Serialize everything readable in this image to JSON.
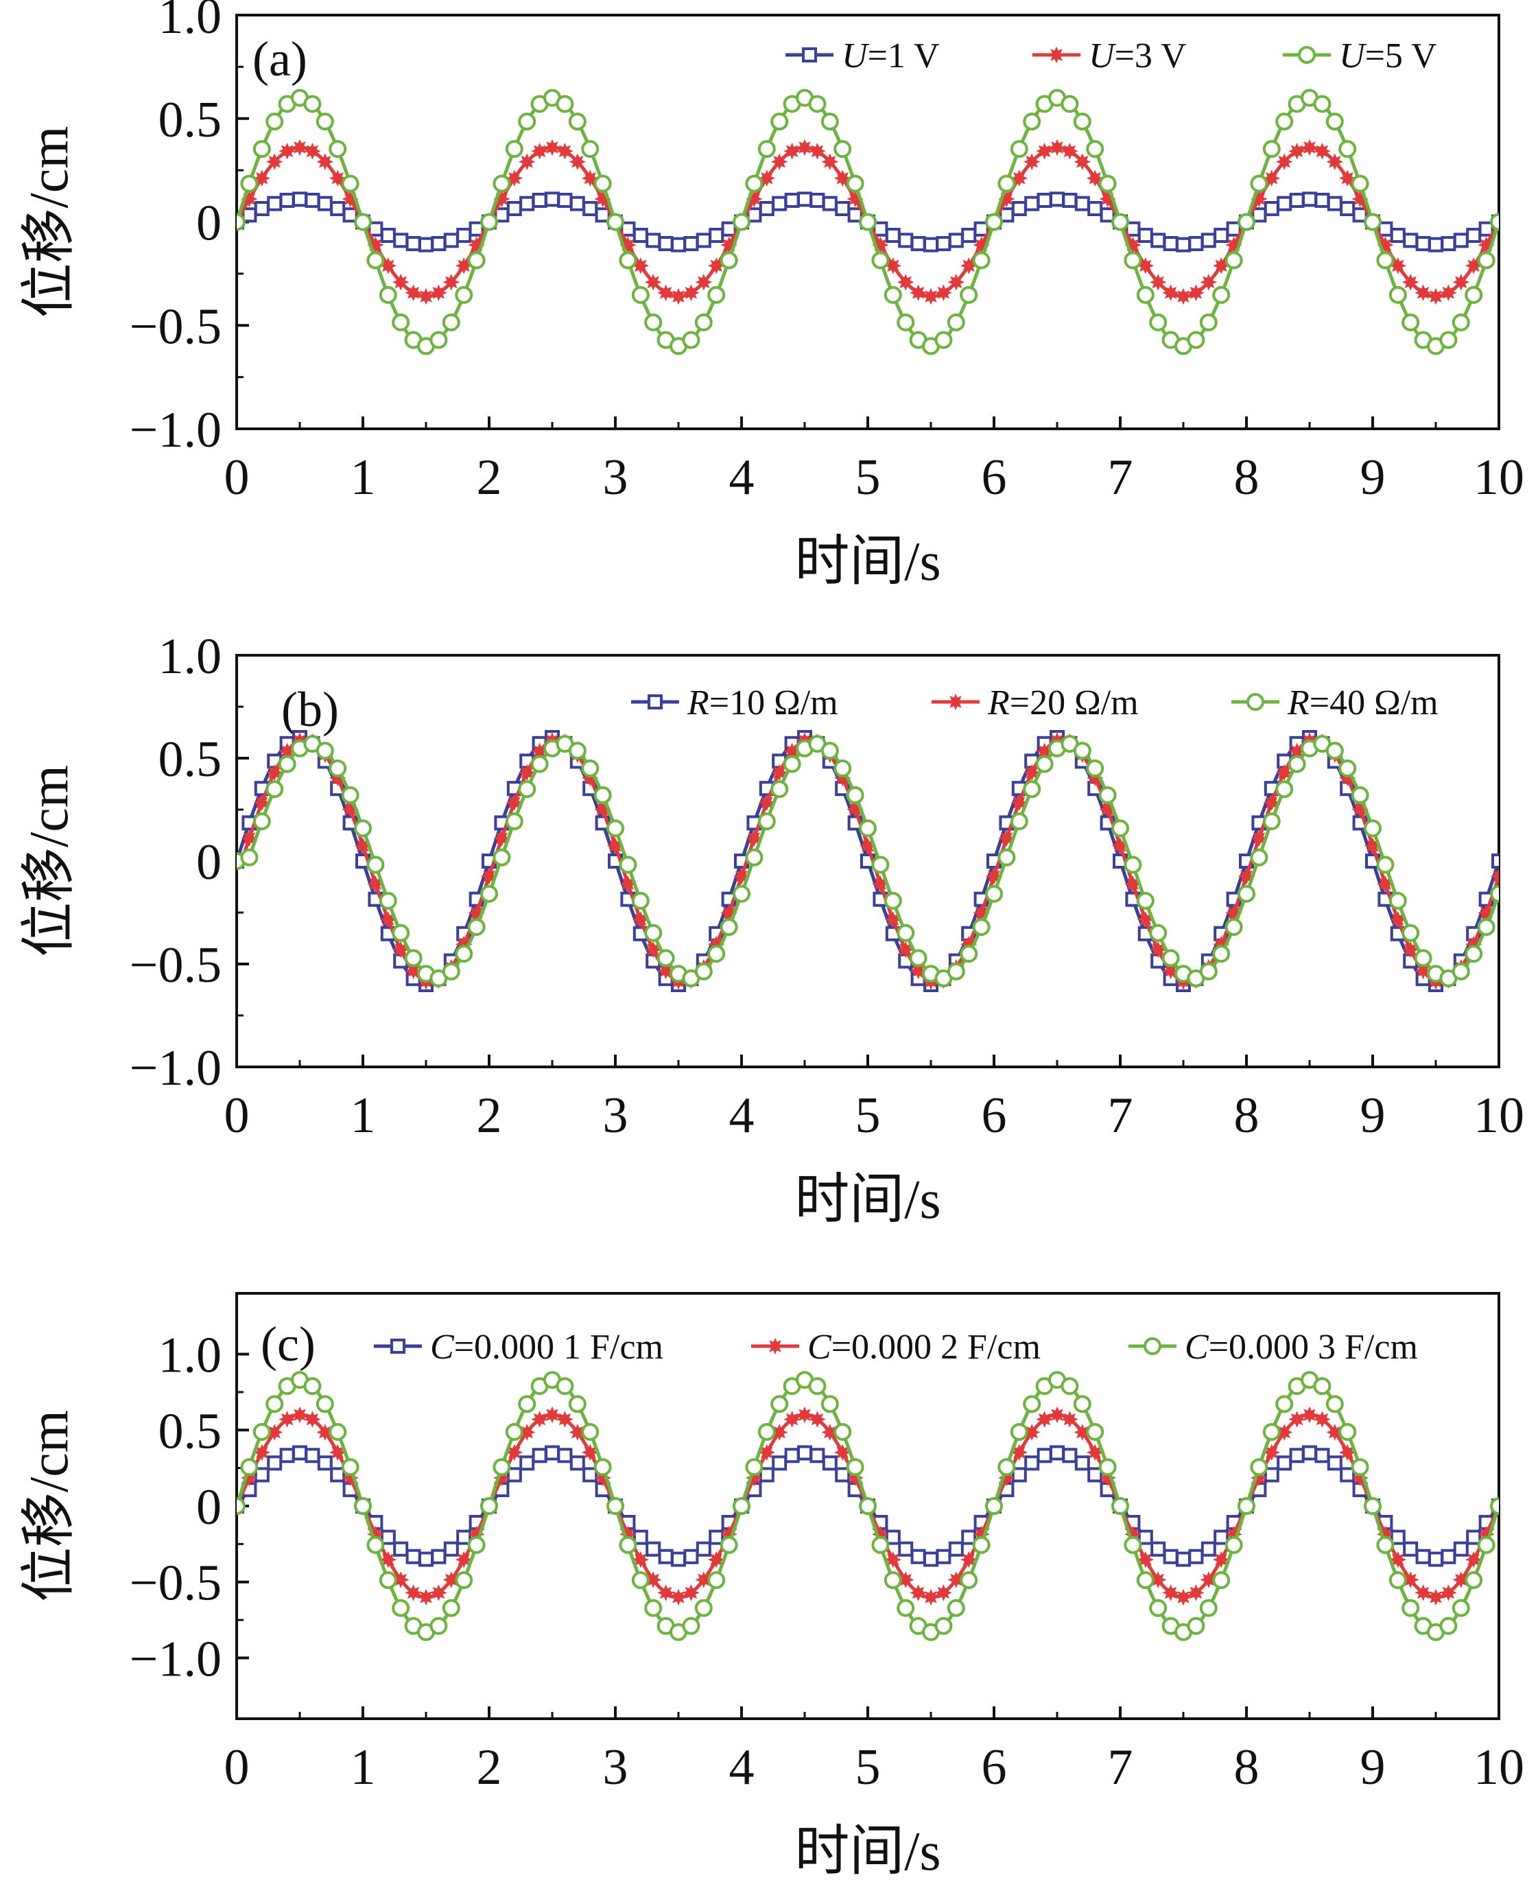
{
  "colors": {
    "series1": "#3a3f99",
    "series2": "#e23a3a",
    "series3": "#6db33f",
    "axis": "#111111"
  },
  "chart_data": [
    {
      "type": "line",
      "panel_label": "(a)",
      "xlabel": "时间/s",
      "ylabel": "位移/cm",
      "xlim": [
        0,
        10
      ],
      "ylim": [
        -1.0,
        1.0
      ],
      "xticks": [
        0,
        1,
        2,
        3,
        4,
        5,
        6,
        7,
        8,
        9,
        10
      ],
      "yticks": [
        -1.0,
        -0.5,
        0,
        0.5,
        1.0
      ],
      "xtick_labels": [
        "0",
        "1",
        "2",
        "3",
        "4",
        "5",
        "6",
        "7",
        "8",
        "9",
        "10"
      ],
      "ytick_labels": [
        "−1.0",
        "−0.5",
        "0",
        "0.5",
        "1.0"
      ],
      "period_s": 2.0,
      "legend_position": "top-right",
      "series": [
        {
          "name": "U=1 V",
          "label_var": "U",
          "label_rest": "=1 V",
          "amplitude": 0.11,
          "phase_lag_s": 0.0,
          "marker": "square"
        },
        {
          "name": "U=3 V",
          "label_var": "U",
          "label_rest": "=3 V",
          "amplitude": 0.36,
          "phase_lag_s": 0.0,
          "marker": "star"
        },
        {
          "name": "U=5 V",
          "label_var": "U",
          "label_rest": "=5 V",
          "amplitude": 0.6,
          "phase_lag_s": 0.0,
          "marker": "circle"
        }
      ]
    },
    {
      "type": "line",
      "panel_label": "(b)",
      "xlabel": "时间/s",
      "ylabel": "位移/cm",
      "xlim": [
        0,
        10
      ],
      "ylim": [
        -1.0,
        1.0
      ],
      "xticks": [
        0,
        1,
        2,
        3,
        4,
        5,
        6,
        7,
        8,
        9,
        10
      ],
      "yticks": [
        -1.0,
        -0.5,
        0,
        0.5,
        1.0
      ],
      "xtick_labels": [
        "0",
        "1",
        "2",
        "3",
        "4",
        "5",
        "6",
        "7",
        "8",
        "9",
        "10"
      ],
      "ytick_labels": [
        "−1.0",
        "−0.5",
        "0",
        "0.5",
        "1.0"
      ],
      "period_s": 2.0,
      "legend_position": "top-right",
      "series": [
        {
          "name": "R=10 Ω/m",
          "label_var": "R",
          "label_rest": "=10 Ω/m",
          "amplitude": 0.6,
          "phase_lag_s": 0.0,
          "marker": "square"
        },
        {
          "name": "R=20 Ω/m",
          "label_var": "R",
          "label_rest": "=20 Ω/m",
          "amplitude": 0.59,
          "phase_lag_s": 0.04,
          "marker": "star"
        },
        {
          "name": "R=40 Ω/m",
          "label_var": "R",
          "label_rest": "=40 Ω/m",
          "amplitude": 0.57,
          "phase_lag_s": 0.09,
          "marker": "circle"
        }
      ]
    },
    {
      "type": "line",
      "panel_label": "(c)",
      "xlabel": "时间/s",
      "ylabel": "位移/cm",
      "xlim": [
        0,
        10
      ],
      "ylim": [
        -1.4,
        1.4
      ],
      "xticks": [
        0,
        1,
        2,
        3,
        4,
        5,
        6,
        7,
        8,
        9,
        10
      ],
      "yticks": [
        -1.0,
        -0.5,
        0,
        0.5,
        1.0
      ],
      "xtick_labels": [
        "0",
        "1",
        "2",
        "3",
        "4",
        "5",
        "6",
        "7",
        "8",
        "9",
        "10"
      ],
      "ytick_labels": [
        "−1.0",
        "−0.5",
        "0",
        "0.5",
        "1.0"
      ],
      "period_s": 2.0,
      "legend_position": "top",
      "series": [
        {
          "name": "C=0.000 1 F/cm",
          "label_var": "C",
          "label_rest": "=0.000 1 F/cm",
          "amplitude": 0.35,
          "phase_lag_s": 0.0,
          "marker": "square"
        },
        {
          "name": "C=0.000 2 F/cm",
          "label_var": "C",
          "label_rest": "=0.000 2 F/cm",
          "amplitude": 0.6,
          "phase_lag_s": 0.0,
          "marker": "star"
        },
        {
          "name": "C=0.000 3 F/cm",
          "label_var": "C",
          "label_rest": "=0.000 3 F/cm",
          "amplitude": 0.83,
          "phase_lag_s": 0.0,
          "marker": "circle"
        }
      ]
    }
  ]
}
